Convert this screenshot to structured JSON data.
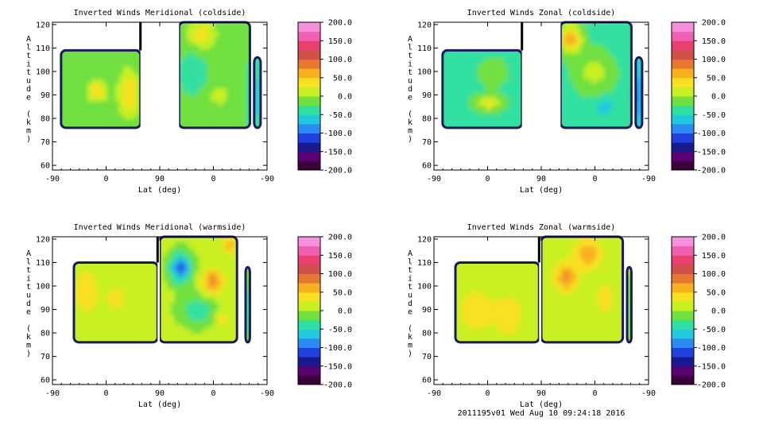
{
  "footer": "2011195v01 Wed Aug 10 09:24:18 2016",
  "colorbar": {
    "labels": [
      "200.0",
      "150.0",
      "100.0",
      "50.0",
      "0.0",
      "-50.0",
      "-100.0",
      "-150.0",
      "-200.0"
    ],
    "values": [
      200,
      150,
      100,
      50,
      0,
      -50,
      -100,
      -150,
      -200
    ],
    "colors": [
      "#3a003a",
      "#5a0070",
      "#1a1a90",
      "#2040e0",
      "#2a8cf0",
      "#20c8e0",
      "#30e0a0",
      "#70e040",
      "#c8f020",
      "#f8e020",
      "#f8b020",
      "#e87830",
      "#d05048",
      "#e84070",
      "#f060b0",
      "#f890e0"
    ]
  },
  "chart_data": [
    {
      "type": "heatmap",
      "title": "Inverted Winds Meridional (coldside)",
      "xlabel": "Lat (deg)",
      "ylabel": "Altitude (km)",
      "xticks": [
        "-90",
        "0",
        "90",
        "0",
        "-90"
      ],
      "yticks": [
        "60",
        "70",
        "80",
        "90",
        "100",
        "110",
        "120"
      ],
      "ylim": [
        58,
        121
      ],
      "clim": [
        -200,
        200
      ],
      "style": "meridional-cold",
      "gap": [
        0.41,
        0.59
      ],
      "coverage": [
        [
          0.04,
          0.41,
          76,
          109
        ],
        [
          0.59,
          0.92,
          76,
          121
        ],
        [
          0.94,
          0.97,
          76,
          106
        ]
      ]
    },
    {
      "type": "heatmap",
      "title": "Inverted Winds Zonal (coldside)",
      "xlabel": "Lat (deg)",
      "ylabel": "Altitude (km)",
      "xticks": [
        "-90",
        "0",
        "90",
        "0",
        "-90"
      ],
      "yticks": [
        "60",
        "70",
        "80",
        "90",
        "100",
        "110",
        "120"
      ],
      "ylim": [
        58,
        121
      ],
      "clim": [
        -200,
        200
      ],
      "style": "zonal-cold",
      "gap": [
        0.41,
        0.59
      ],
      "coverage": [
        [
          0.04,
          0.41,
          76,
          109
        ],
        [
          0.59,
          0.92,
          76,
          121
        ],
        [
          0.94,
          0.97,
          76,
          106
        ]
      ]
    },
    {
      "type": "heatmap",
      "title": "Inverted Winds Meridional (warmside)",
      "xlabel": "Lat (deg)",
      "ylabel": "Altitude (km)",
      "xticks": [
        "-90",
        "0",
        "90",
        "0",
        "-90"
      ],
      "yticks": [
        "60",
        "70",
        "80",
        "90",
        "100",
        "110",
        "120"
      ],
      "ylim": [
        58,
        121
      ],
      "clim": [
        -200,
        200
      ],
      "style": "meridional-warm",
      "gap": [
        0.49,
        0.5
      ],
      "coverage": [
        [
          0.1,
          0.49,
          76,
          110
        ],
        [
          0.5,
          0.86,
          76,
          121
        ],
        [
          0.9,
          0.92,
          76,
          108
        ]
      ]
    },
    {
      "type": "heatmap",
      "title": "Inverted Winds Zonal (warmside)",
      "xlabel": "Lat (deg)",
      "ylabel": "Altitude (km)",
      "xticks": [
        "-90",
        "0",
        "90",
        "0",
        "-90"
      ],
      "yticks": [
        "60",
        "70",
        "80",
        "90",
        "100",
        "110",
        "120"
      ],
      "ylim": [
        58,
        121
      ],
      "clim": [
        -200,
        200
      ],
      "style": "zonal-warm",
      "gap": [
        0.49,
        0.5
      ],
      "coverage": [
        [
          0.1,
          0.49,
          76,
          110
        ],
        [
          0.5,
          0.88,
          76,
          121
        ],
        [
          0.9,
          0.92,
          76,
          108
        ]
      ]
    }
  ]
}
